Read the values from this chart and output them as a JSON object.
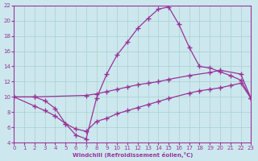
{
  "xlabel": "Windchill (Refroidissement éolien,°C)",
  "background_color": "#cce8ee",
  "grid_color": "#aacfcc",
  "line_color": "#993399",
  "xlim": [
    0,
    23
  ],
  "ylim": [
    4,
    22
  ],
  "yticks": [
    4,
    6,
    8,
    10,
    12,
    14,
    16,
    18,
    20,
    22
  ],
  "xticks": [
    0,
    1,
    2,
    3,
    4,
    5,
    6,
    7,
    8,
    9,
    10,
    11,
    12,
    13,
    14,
    15,
    16,
    17,
    18,
    19,
    20,
    21,
    22,
    23
  ],
  "line1_x": [
    0,
    2,
    3,
    4,
    5,
    6,
    7,
    8,
    9,
    10,
    11,
    12,
    13,
    14,
    15,
    16,
    17,
    18,
    19,
    20,
    21,
    22,
    23
  ],
  "line1_y": [
    10,
    10,
    9.5,
    8.5,
    6.5,
    5.0,
    4.5,
    9.8,
    13.0,
    15.5,
    17.2,
    19.0,
    20.3,
    21.5,
    21.8,
    19.5,
    16.5,
    14.0,
    13.8,
    13.3,
    12.8,
    12.2,
    9.8
  ],
  "line2_x": [
    0,
    2,
    7,
    8,
    9,
    10,
    11,
    12,
    13,
    14,
    15,
    17,
    19,
    20,
    22,
    23
  ],
  "line2_y": [
    10,
    10.0,
    10.2,
    10.4,
    10.7,
    11.0,
    11.3,
    11.6,
    11.8,
    12.0,
    12.3,
    12.8,
    13.2,
    13.5,
    13.0,
    9.8
  ],
  "line3_x": [
    0,
    2,
    3,
    4,
    5,
    6,
    7,
    8,
    9,
    10,
    11,
    12,
    13,
    14,
    15,
    17,
    18,
    19,
    20,
    21,
    22,
    23
  ],
  "line3_y": [
    10,
    8.8,
    8.2,
    7.5,
    6.5,
    5.8,
    5.5,
    6.8,
    7.2,
    7.8,
    8.2,
    8.6,
    9.0,
    9.4,
    9.8,
    10.5,
    10.8,
    11.0,
    11.2,
    11.5,
    11.8,
    9.8
  ]
}
